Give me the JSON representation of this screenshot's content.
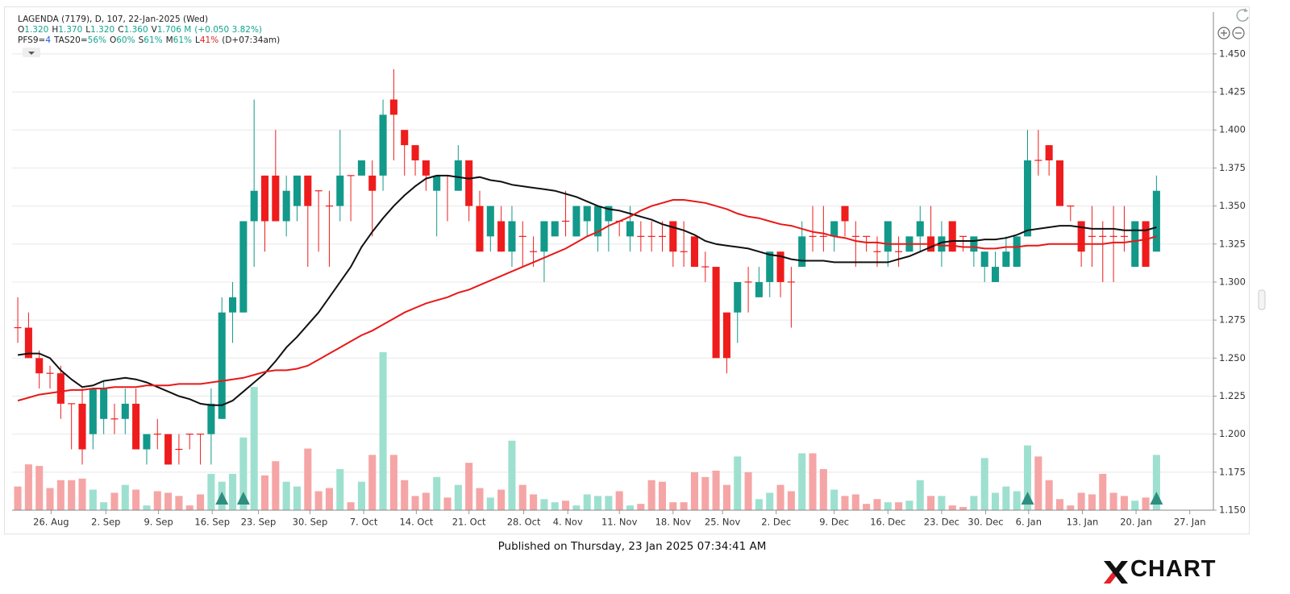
{
  "legend": {
    "line1": "LAGENDA (7179), D, 107, 22-Jan-2025 (Wed)",
    "line2": [
      {
        "label": "O",
        "value": "1.320"
      },
      {
        "label": "H",
        "value": "1.370"
      },
      {
        "label": "L",
        "value": "1.320"
      },
      {
        "label": "C",
        "value": "1.360"
      },
      {
        "label": "V",
        "value": "1.706 M"
      },
      {
        "value": "(+0.050 3.82%)"
      }
    ],
    "line3": [
      {
        "label": "PFS9=",
        "value": "4",
        "color": "#2255dd"
      },
      {
        "label": "TAS20=",
        "value": "56%",
        "color": "#12a58e"
      },
      {
        "label": "O",
        "value": "60%",
        "color": "#12a58e"
      },
      {
        "label": "S",
        "value": "61%",
        "color": "#12a58e"
      },
      {
        "label": "M",
        "value": "61%",
        "color": "#12a58e"
      },
      {
        "label": "L",
        "value": "41%",
        "color": "#e02020"
      },
      {
        "label": "(D+07:34am)"
      }
    ],
    "value_color": "#12a58e"
  },
  "chart_data": {
    "type": "candlestick",
    "xlim": [
      -0.53,
      111.3
    ],
    "ylim": [
      1.15,
      1.4775
    ],
    "volume_lim": [
      0,
      100
    ],
    "grid": true,
    "colors": {
      "up": "#12998a",
      "down": "#ee1c1c",
      "volume_up": "#9ee0cf",
      "volume_down": "#f5a5a5",
      "signal": "#2e8f80"
    },
    "yticks": [
      {
        "value": 1.15,
        "label": "1.150"
      },
      {
        "value": 1.175,
        "label": "1.175"
      },
      {
        "value": 1.2,
        "label": "1.200"
      },
      {
        "value": 1.225,
        "label": "1.225"
      },
      {
        "value": 1.25,
        "label": "1.250"
      },
      {
        "value": 1.275,
        "label": "1.275"
      },
      {
        "value": 1.3,
        "label": "1.300"
      },
      {
        "value": 1.325,
        "label": "1.325"
      },
      {
        "value": 1.35,
        "label": "1.350"
      },
      {
        "value": 1.375,
        "label": "1.375"
      },
      {
        "value": 1.4,
        "label": "1.400"
      },
      {
        "value": 1.425,
        "label": "1.425"
      },
      {
        "value": 1.45,
        "label": "1.450"
      }
    ],
    "xticks": [
      {
        "value": 3.1,
        "label": "26. Aug"
      },
      {
        "value": 8.2,
        "label": "2. Sep"
      },
      {
        "value": 13.1,
        "label": "9. Sep"
      },
      {
        "value": 18.1,
        "label": "16. Sep"
      },
      {
        "value": 22.4,
        "label": "23. Sep"
      },
      {
        "value": 27.2,
        "label": "30. Sep"
      },
      {
        "value": 32.2,
        "label": "7. Oct"
      },
      {
        "value": 37.1,
        "label": "14. Oct"
      },
      {
        "value": 42.0,
        "label": "21. Oct"
      },
      {
        "value": 47.1,
        "label": "28. Oct"
      },
      {
        "value": 51.2,
        "label": "4. Nov"
      },
      {
        "value": 56.0,
        "label": "11. Nov"
      },
      {
        "value": 61.0,
        "label": "18. Nov"
      },
      {
        "value": 65.6,
        "label": "25. Nov"
      },
      {
        "value": 70.6,
        "label": "2. Dec"
      },
      {
        "value": 76.0,
        "label": "9. Dec"
      },
      {
        "value": 81.0,
        "label": "16. Dec"
      },
      {
        "value": 86.0,
        "label": "23. Dec"
      },
      {
        "value": 90.1,
        "label": "30. Dec"
      },
      {
        "value": 94.1,
        "label": "6. Jan"
      },
      {
        "value": 99.1,
        "label": "13. Jan"
      },
      {
        "value": 104.1,
        "label": "20. Jan"
      },
      {
        "value": 109.1,
        "label": "27. Jan"
      }
    ],
    "open": [
      1.27,
      1.27,
      1.25,
      1.24,
      1.24,
      1.22,
      1.22,
      1.2,
      1.21,
      1.21,
      1.21,
      1.22,
      1.19,
      1.2,
      1.2,
      1.19,
      1.2,
      1.2,
      1.2,
      1.21,
      1.28,
      1.28,
      1.34,
      1.37,
      1.37,
      1.34,
      1.35,
      1.37,
      1.36,
      1.35,
      1.35,
      1.37,
      1.37,
      1.37,
      1.37,
      1.42,
      1.4,
      1.39,
      1.38,
      1.36,
      1.37,
      1.36,
      1.38,
      1.35,
      1.33,
      1.34,
      1.32,
      1.33,
      1.32,
      1.32,
      1.33,
      1.34,
      1.33,
      1.34,
      1.33,
      1.34,
      1.34,
      1.33,
      1.33,
      1.33,
      1.33,
      1.34,
      1.32,
      1.33,
      1.31,
      1.31,
      1.28,
      1.28,
      1.3,
      1.29,
      1.3,
      1.32,
      1.3,
      1.31,
      1.33,
      1.33,
      1.33,
      1.35,
      1.33,
      1.33,
      1.32,
      1.32,
      1.32,
      1.32,
      1.33,
      1.33,
      1.32,
      1.34,
      1.33,
      1.32,
      1.31,
      1.3,
      1.31,
      1.31,
      1.33,
      1.38,
      1.39,
      1.38,
      1.35,
      1.34,
      1.33,
      1.33,
      1.33,
      1.33,
      1.31,
      1.34,
      1.32
    ],
    "high": [
      1.29,
      1.28,
      1.255,
      1.245,
      1.245,
      1.22,
      1.23,
      1.23,
      1.235,
      1.22,
      1.23,
      1.23,
      1.2,
      1.21,
      1.2,
      1.2,
      1.2,
      1.2,
      1.23,
      1.29,
      1.3,
      1.34,
      1.42,
      1.37,
      1.4,
      1.37,
      1.37,
      1.37,
      1.36,
      1.36,
      1.4,
      1.37,
      1.38,
      1.38,
      1.42,
      1.44,
      1.4,
      1.39,
      1.38,
      1.37,
      1.37,
      1.39,
      1.38,
      1.36,
      1.35,
      1.35,
      1.35,
      1.34,
      1.33,
      1.34,
      1.34,
      1.36,
      1.35,
      1.35,
      1.35,
      1.35,
      1.34,
      1.35,
      1.34,
      1.34,
      1.34,
      1.34,
      1.34,
      1.33,
      1.32,
      1.31,
      1.28,
      1.3,
      1.31,
      1.31,
      1.32,
      1.32,
      1.31,
      1.34,
      1.35,
      1.35,
      1.34,
      1.35,
      1.34,
      1.33,
      1.33,
      1.34,
      1.33,
      1.33,
      1.35,
      1.35,
      1.34,
      1.34,
      1.33,
      1.33,
      1.32,
      1.32,
      1.33,
      1.33,
      1.4,
      1.4,
      1.39,
      1.38,
      1.35,
      1.34,
      1.35,
      1.34,
      1.35,
      1.35,
      1.34,
      1.34,
      1.37
    ],
    "low": [
      1.26,
      1.25,
      1.23,
      1.23,
      1.21,
      1.19,
      1.18,
      1.19,
      1.2,
      1.2,
      1.2,
      1.19,
      1.18,
      1.19,
      1.18,
      1.18,
      1.19,
      1.18,
      1.18,
      1.21,
      1.26,
      1.28,
      1.31,
      1.32,
      1.34,
      1.33,
      1.34,
      1.31,
      1.32,
      1.31,
      1.34,
      1.34,
      1.37,
      1.33,
      1.36,
      1.38,
      1.37,
      1.37,
      1.36,
      1.33,
      1.34,
      1.36,
      1.34,
      1.32,
      1.32,
      1.32,
      1.31,
      1.31,
      1.31,
      1.3,
      1.33,
      1.33,
      1.33,
      1.33,
      1.32,
      1.32,
      1.33,
      1.32,
      1.32,
      1.32,
      1.32,
      1.31,
      1.31,
      1.31,
      1.3,
      1.25,
      1.24,
      1.26,
      1.28,
      1.29,
      1.29,
      1.29,
      1.27,
      1.31,
      1.32,
      1.32,
      1.32,
      1.33,
      1.31,
      1.32,
      1.31,
      1.31,
      1.31,
      1.32,
      1.32,
      1.32,
      1.31,
      1.32,
      1.32,
      1.31,
      1.3,
      1.3,
      1.31,
      1.31,
      1.33,
      1.37,
      1.37,
      1.35,
      1.34,
      1.31,
      1.31,
      1.3,
      1.3,
      1.32,
      1.31,
      1.31,
      1.32
    ],
    "close": [
      1.27,
      1.25,
      1.24,
      1.24,
      1.22,
      1.22,
      1.19,
      1.23,
      1.23,
      1.21,
      1.22,
      1.19,
      1.2,
      1.2,
      1.18,
      1.19,
      1.2,
      1.2,
      1.22,
      1.28,
      1.29,
      1.34,
      1.36,
      1.34,
      1.34,
      1.36,
      1.37,
      1.35,
      1.36,
      1.35,
      1.37,
      1.37,
      1.38,
      1.36,
      1.41,
      1.41,
      1.39,
      1.38,
      1.37,
      1.37,
      1.37,
      1.38,
      1.35,
      1.32,
      1.35,
      1.32,
      1.34,
      1.33,
      1.32,
      1.34,
      1.34,
      1.34,
      1.35,
      1.35,
      1.35,
      1.35,
      1.34,
      1.34,
      1.33,
      1.33,
      1.33,
      1.32,
      1.32,
      1.31,
      1.31,
      1.25,
      1.25,
      1.3,
      1.3,
      1.3,
      1.32,
      1.3,
      1.3,
      1.33,
      1.33,
      1.33,
      1.34,
      1.34,
      1.33,
      1.33,
      1.32,
      1.34,
      1.32,
      1.33,
      1.34,
      1.32,
      1.33,
      1.32,
      1.33,
      1.33,
      1.32,
      1.31,
      1.32,
      1.33,
      1.38,
      1.38,
      1.38,
      1.35,
      1.35,
      1.32,
      1.33,
      1.33,
      1.33,
      1.33,
      1.34,
      1.31,
      1.36
    ],
    "volume": [
      15,
      29,
      28,
      14,
      19,
      19,
      20,
      13,
      5,
      11,
      16,
      13,
      3,
      12,
      11,
      9,
      3,
      10,
      23,
      18,
      23,
      46,
      78,
      22,
      31,
      18,
      15,
      39,
      12,
      14,
      26,
      5,
      18,
      35,
      100,
      35,
      19,
      9,
      11,
      21,
      8,
      16,
      30,
      14,
      8,
      13,
      44,
      16,
      10,
      7,
      5,
      6,
      3,
      10,
      9,
      9,
      12,
      3,
      4,
      19,
      18,
      5,
      5,
      24,
      21,
      25,
      16,
      34,
      24,
      7,
      11,
      16,
      12,
      36,
      36,
      26,
      13,
      9,
      10,
      4,
      7,
      5,
      5,
      6,
      19,
      9,
      9,
      3,
      2,
      9,
      33,
      11,
      15,
      12,
      41,
      34,
      19,
      7,
      3,
      11,
      10,
      23,
      11,
      9,
      6,
      8,
      35
    ],
    "series": [
      {
        "color": "#111111",
        "values": [
          1.252,
          1.253,
          1.253,
          1.25,
          1.242,
          1.236,
          1.231,
          1.232,
          1.235,
          1.236,
          1.237,
          1.236,
          1.234,
          1.231,
          1.228,
          1.225,
          1.223,
          1.22,
          1.219,
          1.219,
          1.222,
          1.228,
          1.234,
          1.24,
          1.248,
          1.257,
          1.264,
          1.272,
          1.28,
          1.29,
          1.3,
          1.31,
          1.323,
          1.333,
          1.342,
          1.35,
          1.357,
          1.363,
          1.368,
          1.37,
          1.37,
          1.369,
          1.368,
          1.369,
          1.367,
          1.366,
          1.364,
          1.363,
          1.362,
          1.361,
          1.36,
          1.358,
          1.356,
          1.353,
          1.35,
          1.348,
          1.347,
          1.345,
          1.343,
          1.341,
          1.338,
          1.336,
          1.334,
          1.331,
          1.327,
          1.325,
          1.324,
          1.323,
          1.322,
          1.32,
          1.318,
          1.317,
          1.315,
          1.314,
          1.314,
          1.314,
          1.313,
          1.313,
          1.313,
          1.313,
          1.313,
          1.313,
          1.315,
          1.317,
          1.32,
          1.323,
          1.326,
          1.327,
          1.327,
          1.327,
          1.328,
          1.328,
          1.329,
          1.331,
          1.334,
          1.335,
          1.336,
          1.337,
          1.337,
          1.336,
          1.335,
          1.335,
          1.335,
          1.334,
          1.334,
          1.334,
          1.336
        ]
      },
      {
        "color": "#e81818",
        "values": [
          1.222,
          1.224,
          1.226,
          1.227,
          1.228,
          1.229,
          1.229,
          1.23,
          1.23,
          1.231,
          1.231,
          1.231,
          1.232,
          1.232,
          1.232,
          1.233,
          1.233,
          1.233,
          1.234,
          1.235,
          1.236,
          1.237,
          1.239,
          1.241,
          1.242,
          1.242,
          1.243,
          1.245,
          1.249,
          1.253,
          1.257,
          1.261,
          1.265,
          1.268,
          1.272,
          1.276,
          1.28,
          1.283,
          1.286,
          1.288,
          1.29,
          1.293,
          1.295,
          1.298,
          1.301,
          1.304,
          1.307,
          1.31,
          1.313,
          1.316,
          1.319,
          1.322,
          1.326,
          1.33,
          1.333,
          1.337,
          1.34,
          1.343,
          1.347,
          1.35,
          1.352,
          1.354,
          1.354,
          1.353,
          1.352,
          1.35,
          1.348,
          1.345,
          1.343,
          1.342,
          1.34,
          1.338,
          1.337,
          1.335,
          1.333,
          1.332,
          1.33,
          1.329,
          1.327,
          1.326,
          1.326,
          1.325,
          1.325,
          1.325,
          1.325,
          1.325,
          1.324,
          1.324,
          1.323,
          1.323,
          1.322,
          1.322,
          1.323,
          1.323,
          1.324,
          1.324,
          1.325,
          1.325,
          1.325,
          1.325,
          1.325,
          1.325,
          1.326,
          1.326,
          1.327,
          1.328,
          1.33
        ]
      }
    ],
    "signals": [
      19,
      21,
      94,
      106
    ]
  },
  "footer": "Published on Thursday, 23 Jan 2025 07:34:41 AM",
  "logo": "CHART"
}
